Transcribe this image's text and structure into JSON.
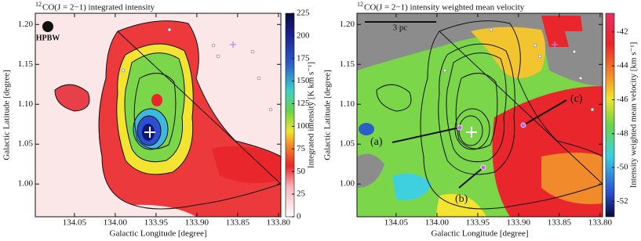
{
  "chart_data": [
    {
      "type": "map",
      "title_prefix": "12",
      "title": "CO(J = 2−1) integrated intensity",
      "xlabel": "Galactic Longitude [degree]",
      "ylabel": "Galactic Latitude [degree]",
      "xlim": [
        134.098,
        133.797
      ],
      "ylim": [
        0.959,
        1.214
      ],
      "xticks": [
        134.05,
        {
          "value": 134,
          "label": "134.00"
        },
        133.95,
        {
          "value": 133.9,
          "label": "133.90"
        },
        133.85,
        {
          "value": 133.8,
          "label": "133.80"
        }
      ],
      "yticks": [
        {
          "value": 1,
          "label": "1.00"
        },
        1.05,
        {
          "value": 1.1,
          "label": "1.10"
        },
        1.15,
        {
          "value": 1.2,
          "label": "1.20"
        }
      ],
      "colorbar_label": "Integrated intensity [K km s⁻¹]",
      "colorbar_lim": [
        0,
        225
      ],
      "colorbar_ticks": [
        0,
        25,
        50,
        75,
        100,
        125,
        150,
        175,
        200,
        225
      ],
      "annotations": [
        "HPBW"
      ]
    },
    {
      "type": "map",
      "title_prefix": "12",
      "title": "CO(J = 2−1) intensity weighted mean velocity",
      "xlabel": "Galactic Longitude [degree]",
      "ylabel": "Galactic Latitude [degree]",
      "xlim": [
        134.098,
        133.797
      ],
      "ylim": [
        0.959,
        1.214
      ],
      "xticks": [
        134.05,
        {
          "value": 134,
          "label": "134.00"
        },
        133.95,
        {
          "value": 133.9,
          "label": "133.90"
        },
        133.85,
        {
          "value": 133.8,
          "label": "133.80"
        }
      ],
      "yticks": [
        {
          "value": 1,
          "label": "1.00"
        },
        1.05,
        {
          "value": 1.1,
          "label": "1.10"
        },
        1.15,
        {
          "value": 1.2,
          "label": "1.20"
        }
      ],
      "colorbar_label": "Intensity weighted mean velocity [km s⁻¹]",
      "colorbar_lim": [
        -52.9,
        -40.9
      ],
      "colorbar_ticks": [
        -42,
        -44,
        -46,
        -48,
        -50,
        -52
      ],
      "annotations": [
        "3 pc",
        "(a)",
        "(b)",
        "(c)"
      ]
    }
  ]
}
